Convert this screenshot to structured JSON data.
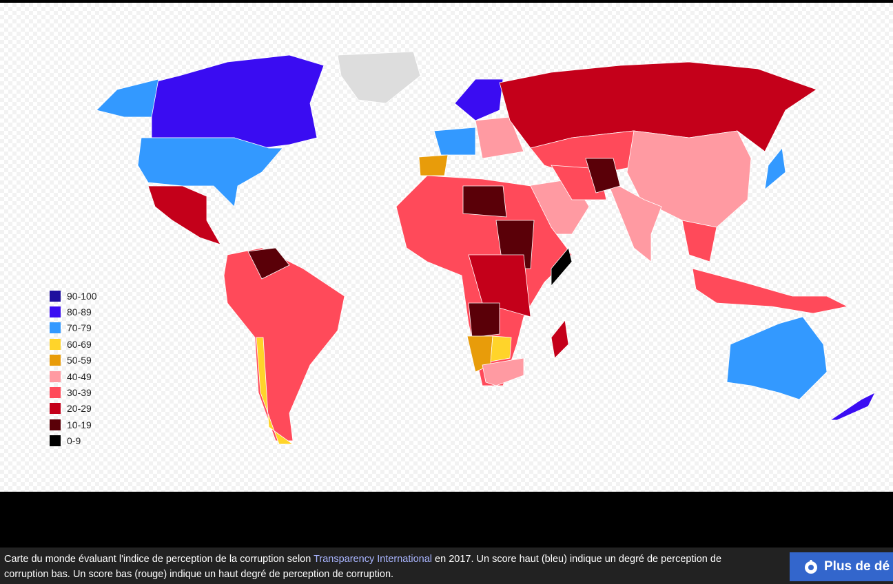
{
  "legend": {
    "items": [
      {
        "label": "90-100",
        "color": "#1f0f9e"
      },
      {
        "label": "80-89",
        "color": "#3a0cf2"
      },
      {
        "label": "70-79",
        "color": "#3399ff"
      },
      {
        "label": "60-69",
        "color": "#ffd42a"
      },
      {
        "label": "50-59",
        "color": "#e89c0a"
      },
      {
        "label": "40-49",
        "color": "#ff9aa2"
      },
      {
        "label": "30-39",
        "color": "#ff4a5a"
      },
      {
        "label": "20-29",
        "color": "#c4001a"
      },
      {
        "label": "10-19",
        "color": "#5a0008"
      },
      {
        "label": "0-9",
        "color": "#000000"
      }
    ]
  },
  "caption": {
    "before": "Carte du monde évaluant l'indice de perception de la corruption selon ",
    "link": "Transparency International",
    "after": " en 2017. Un score haut (bleu) indique un degré de perception de corruption bas. Un score bas (rouge) indique un haut degré de perception de corruption."
  },
  "button": {
    "label": "Plus de dé"
  }
}
